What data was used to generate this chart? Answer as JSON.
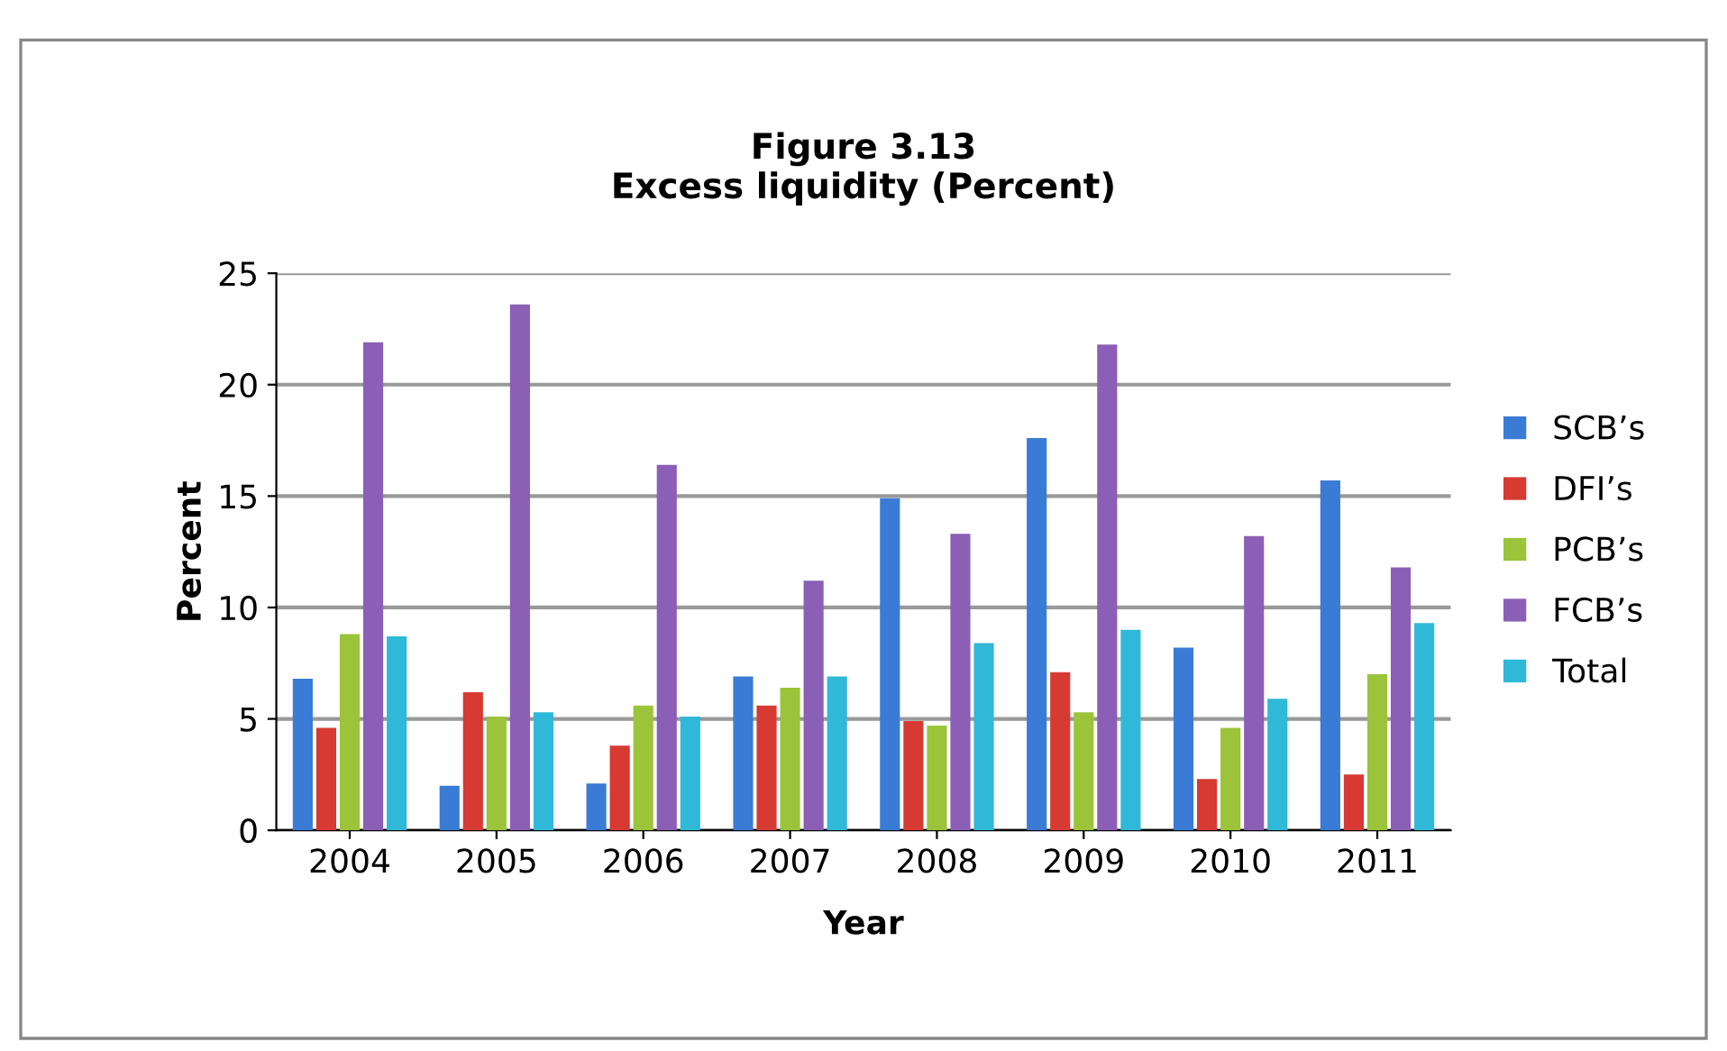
{
  "chart_data": {
    "type": "bar",
    "title": "Figure 3.13\nExcess liquidity (Percent)",
    "xlabel": "Year",
    "ylabel": "Percent",
    "categories": [
      "2004",
      "2005",
      "2006",
      "2007",
      "2008",
      "2009",
      "2010",
      "2011"
    ],
    "series": [
      {
        "name": "SCB’s",
        "color": "#3a7bd5",
        "values": [
          6.8,
          2.0,
          2.1,
          6.9,
          14.9,
          17.6,
          8.2,
          15.7
        ]
      },
      {
        "name": "DFI’s",
        "color": "#d63a32",
        "values": [
          4.6,
          6.2,
          3.8,
          5.6,
          4.9,
          7.1,
          2.3,
          2.5
        ]
      },
      {
        "name": "PCB’s",
        "color": "#9bc43a",
        "values": [
          8.8,
          5.1,
          5.6,
          6.4,
          4.7,
          5.3,
          4.6,
          7.0
        ]
      },
      {
        "name": "FCB’s",
        "color": "#8a5fb5",
        "values": [
          21.9,
          23.6,
          16.4,
          11.2,
          13.3,
          21.8,
          13.2,
          11.8
        ]
      },
      {
        "name": "Total",
        "color": "#2fb8d8",
        "values": [
          8.7,
          5.3,
          5.1,
          6.9,
          8.4,
          9.0,
          5.9,
          9.3
        ]
      }
    ],
    "ylim": [
      0,
      25
    ],
    "yticks": [
      0,
      5,
      10,
      15,
      20,
      25
    ],
    "grid": "y",
    "legend": "right"
  }
}
